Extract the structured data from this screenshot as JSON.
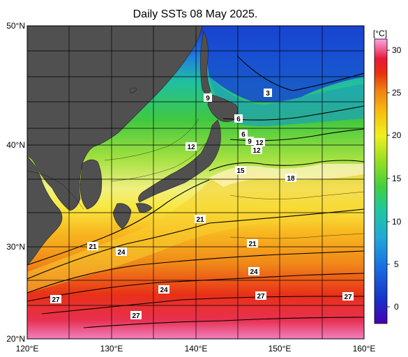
{
  "title": "Daily SSTs 08 May 2025.",
  "map": {
    "lon_ticks": [
      "120°E",
      "130°E",
      "140°E",
      "150°E",
      "160°E"
    ],
    "lat_ticks": [
      "50°N",
      "40°N",
      "30°N",
      "20°N"
    ]
  },
  "colorbar": {
    "unit": "[°C]",
    "ticks": [
      "30",
      "25",
      "20",
      "15",
      "10",
      "5",
      "0"
    ],
    "colors": [
      "#4a00b0",
      "#1030d0",
      "#1870e0",
      "#20b8c8",
      "#30c870",
      "#50d030",
      "#a8e020",
      "#f0f020",
      "#f8c010",
      "#f08010",
      "#e83010",
      "#e81830",
      "#f060a0",
      "#f8a0e0"
    ]
  },
  "contour_labels": [
    {
      "id": "c3",
      "text": "3"
    },
    {
      "id": "c9a",
      "text": "9"
    },
    {
      "id": "c6",
      "text": "6"
    },
    {
      "id": "c6b",
      "text": "6"
    },
    {
      "id": "c9b",
      "text": "9"
    },
    {
      "id": "c12a",
      "text": "12"
    },
    {
      "id": "c12b",
      "text": "12"
    },
    {
      "id": "c12c",
      "text": "12"
    },
    {
      "id": "c15",
      "text": "15"
    },
    {
      "id": "c18",
      "text": "18"
    },
    {
      "id": "c21a",
      "text": "21"
    },
    {
      "id": "c21b",
      "text": "21"
    },
    {
      "id": "c21c",
      "text": "21"
    },
    {
      "id": "c24a",
      "text": "24"
    },
    {
      "id": "c24b",
      "text": "24"
    },
    {
      "id": "c24c",
      "text": "24"
    },
    {
      "id": "c27a",
      "text": "27"
    },
    {
      "id": "c27b",
      "text": "27"
    },
    {
      "id": "c27c",
      "text": "27"
    },
    {
      "id": "c27d",
      "text": "27"
    }
  ]
}
